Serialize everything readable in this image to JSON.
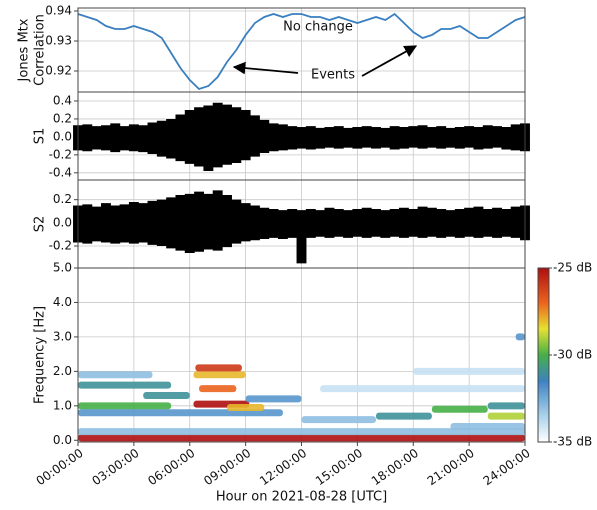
{
  "chart_data": [
    {
      "type": "line",
      "y_label": [
        "Jones Mtx",
        "Correlation"
      ],
      "color": "#3a7fbf",
      "grid": true,
      "annotations": [
        "No change",
        "Events"
      ],
      "xlim": [
        0,
        24
      ],
      "ylim": [
        0.913,
        0.941
      ],
      "yticks": [
        0.92,
        0.93,
        0.94
      ],
      "x": [
        0,
        0.5,
        1,
        1.5,
        2,
        2.5,
        3,
        3.5,
        4,
        4.5,
        5,
        5.5,
        6,
        6.5,
        7,
        7.5,
        8,
        8.5,
        9,
        9.5,
        10,
        10.5,
        11,
        11.5,
        12,
        12.5,
        13,
        13.5,
        14,
        14.5,
        15,
        15.5,
        16,
        16.5,
        17,
        17.5,
        18,
        18.5,
        19,
        19.5,
        20,
        20.5,
        21,
        21.5,
        22,
        22.5,
        23,
        23.5,
        24
      ],
      "values": [
        0.939,
        0.938,
        0.937,
        0.935,
        0.934,
        0.934,
        0.935,
        0.934,
        0.933,
        0.931,
        0.926,
        0.921,
        0.917,
        0.914,
        0.915,
        0.918,
        0.923,
        0.927,
        0.932,
        0.936,
        0.938,
        0.939,
        0.938,
        0.939,
        0.939,
        0.938,
        0.938,
        0.937,
        0.938,
        0.937,
        0.936,
        0.937,
        0.938,
        0.937,
        0.939,
        0.936,
        0.933,
        0.931,
        0.932,
        0.934,
        0.934,
        0.935,
        0.933,
        0.931,
        0.931,
        0.933,
        0.935,
        0.937,
        0.938
      ]
    },
    {
      "type": "waveform",
      "y_label": "S1",
      "color": "#000000",
      "grid": true,
      "xlim": [
        0,
        24
      ],
      "ylim": [
        -0.48,
        0.5
      ],
      "yticks": [
        -0.4,
        -0.2,
        {
          "value": 0,
          "label": "0.0"
        },
        0.2,
        0.4
      ],
      "x": [
        0,
        0.5,
        1,
        1.5,
        2,
        2.5,
        3,
        3.5,
        4,
        4.5,
        5,
        5.5,
        6,
        6.5,
        7,
        7.5,
        8,
        8.5,
        9,
        9.5,
        10,
        10.5,
        11,
        11.5,
        12,
        12.5,
        13,
        13.5,
        14,
        14.5,
        15,
        15.5,
        16,
        16.5,
        17,
        17.5,
        18,
        18.5,
        19,
        19.5,
        20,
        20.5,
        21,
        21.5,
        22,
        22.5,
        23,
        23.5,
        24
      ],
      "upper": [
        0.13,
        0.14,
        0.12,
        0.13,
        0.15,
        0.12,
        0.14,
        0.13,
        0.16,
        0.18,
        0.2,
        0.25,
        0.3,
        0.33,
        0.35,
        0.38,
        0.36,
        0.33,
        0.3,
        0.24,
        0.19,
        0.15,
        0.14,
        0.12,
        0.11,
        0.12,
        0.1,
        0.11,
        0.12,
        0.1,
        0.11,
        0.12,
        0.11,
        0.1,
        0.12,
        0.11,
        0.12,
        0.13,
        0.11,
        0.12,
        0.1,
        0.11,
        0.12,
        0.11,
        0.13,
        0.12,
        0.11,
        0.14,
        0.15
      ],
      "lower": [
        -0.15,
        -0.16,
        -0.14,
        -0.15,
        -0.17,
        -0.15,
        -0.16,
        -0.17,
        -0.19,
        -0.22,
        -0.24,
        -0.27,
        -0.3,
        -0.33,
        -0.38,
        -0.34,
        -0.31,
        -0.29,
        -0.26,
        -0.22,
        -0.18,
        -0.16,
        -0.15,
        -0.14,
        -0.13,
        -0.14,
        -0.13,
        -0.12,
        -0.13,
        -0.12,
        -0.13,
        -0.12,
        -0.13,
        -0.12,
        -0.14,
        -0.13,
        -0.12,
        -0.13,
        -0.12,
        -0.13,
        -0.12,
        -0.13,
        -0.12,
        -0.14,
        -0.13,
        -0.12,
        -0.14,
        -0.15,
        -0.16
      ]
    },
    {
      "type": "waveform",
      "y_label": "S2",
      "color": "#000000",
      "grid": true,
      "xlim": [
        0,
        24
      ],
      "ylim": [
        -0.39,
        0.37
      ],
      "yticks": [
        -0.2,
        {
          "value": 0,
          "label": "0.0"
        },
        0.2
      ],
      "x": [
        0,
        0.5,
        1,
        1.5,
        2,
        2.5,
        3,
        3.5,
        4,
        4.5,
        5,
        5.5,
        6,
        6.5,
        7,
        7.5,
        8,
        8.5,
        9,
        9.5,
        10,
        10.5,
        11,
        11.5,
        12,
        12.5,
        13,
        13.5,
        14,
        14.5,
        15,
        15.5,
        16,
        16.5,
        17,
        17.5,
        18,
        18.5,
        19,
        19.5,
        20,
        20.5,
        21,
        21.5,
        22,
        22.5,
        23,
        23.5,
        24
      ],
      "upper": [
        0.15,
        0.16,
        0.14,
        0.17,
        0.15,
        0.16,
        0.18,
        0.17,
        0.19,
        0.2,
        0.22,
        0.24,
        0.25,
        0.27,
        0.25,
        0.28,
        0.24,
        0.2,
        0.17,
        0.15,
        0.13,
        0.12,
        0.11,
        0.12,
        0.11,
        0.12,
        0.11,
        0.13,
        0.12,
        0.11,
        0.12,
        0.13,
        0.12,
        0.11,
        0.12,
        0.13,
        0.12,
        0.14,
        0.13,
        0.12,
        0.11,
        0.12,
        0.13,
        0.14,
        0.12,
        0.13,
        0.12,
        0.14,
        0.15
      ],
      "lower": [
        -0.17,
        -0.18,
        -0.16,
        -0.17,
        -0.18,
        -0.17,
        -0.18,
        -0.17,
        -0.19,
        -0.2,
        -0.22,
        -0.24,
        -0.26,
        -0.25,
        -0.23,
        -0.24,
        -0.21,
        -0.18,
        -0.16,
        -0.15,
        -0.14,
        -0.13,
        -0.14,
        -0.13,
        -0.35,
        -0.13,
        -0.12,
        -0.13,
        -0.12,
        -0.13,
        -0.12,
        -0.13,
        -0.12,
        -0.13,
        -0.12,
        -0.13,
        -0.12,
        -0.13,
        -0.12,
        -0.13,
        -0.12,
        -0.13,
        -0.12,
        -0.13,
        -0.12,
        -0.13,
        -0.12,
        -0.13,
        -0.15
      ]
    },
    {
      "type": "heatmap",
      "y_label": "Frequency [Hz]",
      "x_label": "Hour on 2021-08-28 [UTC]",
      "grid": true,
      "xlim": [
        0,
        24
      ],
      "ylim": [
        -0.05,
        5
      ],
      "xticks": [
        {
          "value": 0,
          "label": "00:00:00"
        },
        {
          "value": 3,
          "label": "03:00:00"
        },
        {
          "value": 6,
          "label": "06:00:00"
        },
        {
          "value": 9,
          "label": "09:00:00"
        },
        {
          "value": 12,
          "label": "12:00:00"
        },
        {
          "value": 15,
          "label": "15:00:00"
        },
        {
          "value": 18,
          "label": "18:00:00"
        },
        {
          "value": 21,
          "label": "21:00:00"
        },
        {
          "value": 24,
          "label": "24:00:00"
        }
      ],
      "yticks": [
        {
          "value": 0,
          "label": "0.0"
        },
        {
          "value": 1,
          "label": "1.0"
        },
        {
          "value": 2,
          "label": "2.0"
        },
        {
          "value": 3,
          "label": "3.0"
        },
        {
          "value": 4,
          "label": "4.0"
        },
        {
          "value": 5,
          "label": "5.0"
        }
      ],
      "clim": [
        -35,
        -25
      ],
      "cticks": [
        {
          "value": -25,
          "label": "-25 dB"
        },
        {
          "value": -30,
          "label": "-30 dB"
        },
        {
          "value": -35,
          "label": "-35 dB"
        }
      ],
      "x_start": [
        0,
        0,
        0,
        0,
        0,
        0,
        3.5,
        6.2,
        6.5,
        6.2,
        6.3,
        8,
        9,
        12,
        13,
        16,
        18,
        19,
        20,
        22,
        22,
        23.5
      ],
      "x_end": [
        24,
        24,
        5,
        11,
        5,
        4,
        6,
        9.2,
        8.5,
        9,
        8.8,
        10,
        12,
        16,
        24,
        19,
        24,
        22,
        24,
        24,
        24,
        24
      ],
      "freq": [
        0.07,
        0.25,
        1.0,
        0.8,
        1.6,
        1.9,
        1.3,
        1.05,
        1.5,
        1.9,
        2.1,
        0.95,
        1.2,
        0.6,
        1.5,
        0.7,
        2.0,
        0.9,
        0.4,
        0.7,
        1.0,
        3.0
      ],
      "db": [
        -25,
        -33,
        -30,
        -32,
        -31,
        -33,
        -31,
        -25,
        -27,
        -28,
        -26,
        -28,
        -32,
        -33,
        -34,
        -31,
        -34,
        -30,
        -33,
        -29,
        -31,
        -32
      ]
    }
  ]
}
